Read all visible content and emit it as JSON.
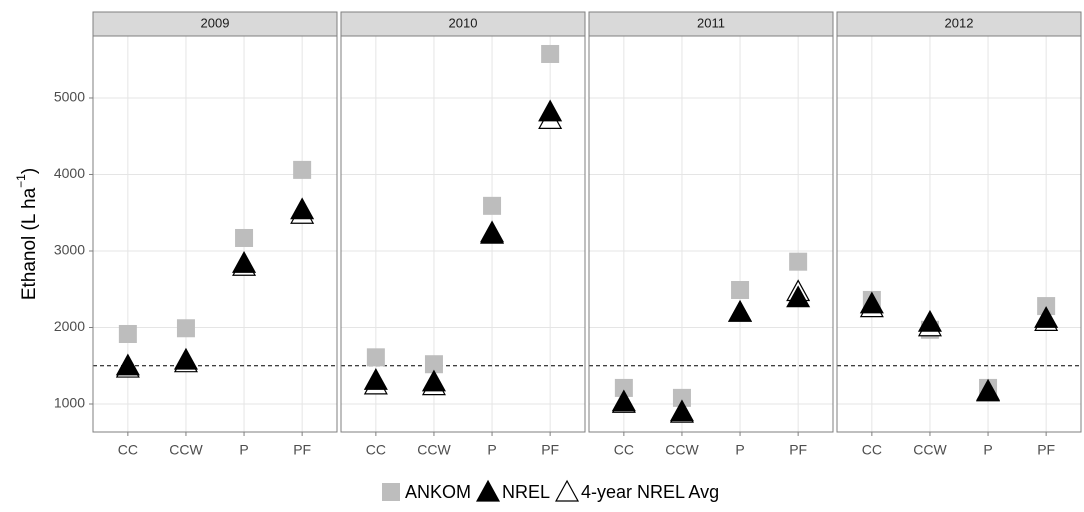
{
  "chart_data": {
    "type": "scatter",
    "ylabel": "Ethanol (L ha",
    "ylabel_sup": "−1",
    "ylabel_end": ")",
    "categories": [
      "CC",
      "CCW",
      "P",
      "PF"
    ],
    "ylim": [
      634,
      5810
    ],
    "yticks": [
      1000,
      2000,
      3000,
      4000,
      5000
    ],
    "grid": true,
    "hline": 1500,
    "legend": "bottom",
    "series": [
      {
        "name": "ANKOM",
        "color": "#bdbdbd",
        "shape": "square"
      },
      {
        "name": "NREL",
        "color": "#000000",
        "shape": "triangle"
      },
      {
        "name": "4-year NREL Avg",
        "color": "#ffffff",
        "shape": "triangle"
      }
    ],
    "facets": [
      {
        "title": "2009",
        "values": [
          [
            1915,
            1990,
            3170,
            4060
          ],
          [
            1500,
            1575,
            2840,
            3540
          ],
          [
            1470,
            1540,
            2800,
            3480
          ]
        ]
      },
      {
        "title": "2010",
        "values": [
          [
            1610,
            1520,
            3590,
            5575
          ],
          [
            1310,
            1290,
            3220,
            4820
          ],
          [
            1250,
            1240,
            3240,
            4720
          ]
        ]
      },
      {
        "title": "2011",
        "values": [
          [
            1210,
            1080,
            2490,
            2860
          ],
          [
            1030,
            900,
            2200,
            2390
          ],
          [
            1010,
            880,
            2200,
            2470
          ]
        ]
      },
      {
        "title": "2012",
        "values": [
          [
            2360,
            1970,
            1210,
            2280
          ],
          [
            2310,
            2070,
            1160,
            2120
          ],
          [
            2260,
            2010,
            1170,
            2080
          ]
        ]
      }
    ]
  }
}
